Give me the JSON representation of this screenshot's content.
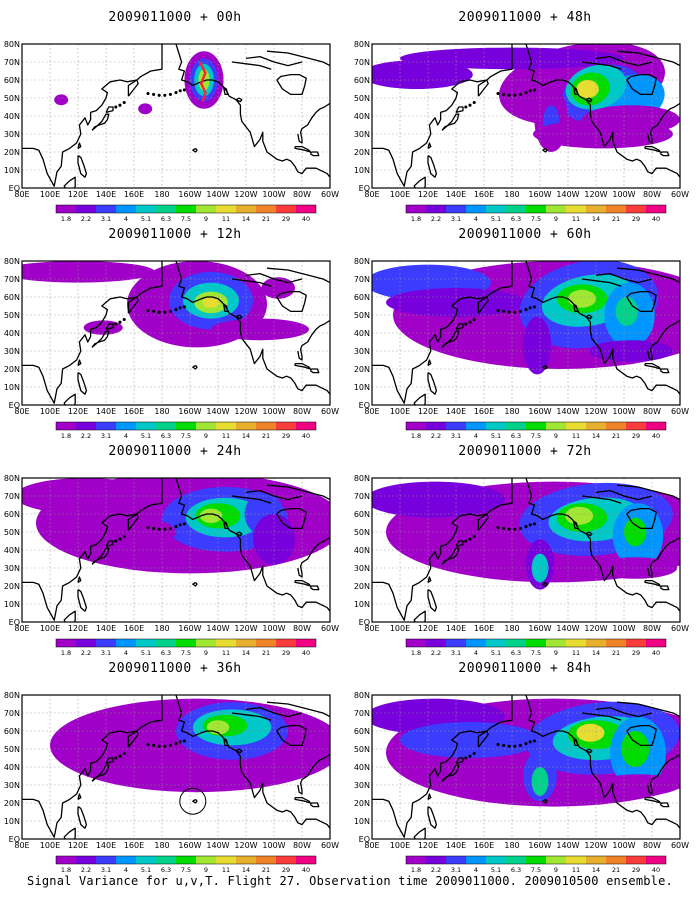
{
  "lat_labels": [
    "80N",
    "70N",
    "60N",
    "50N",
    "40N",
    "30N",
    "20N",
    "10N",
    "EQ"
  ],
  "lon_labels": [
    "80E",
    "100E",
    "120E",
    "140E",
    "160E",
    "180",
    "160W",
    "140W",
    "120W",
    "100W",
    "80W",
    "60W"
  ],
  "colorbar": {
    "labels": [
      "1.8",
      "2.2",
      "3.1",
      "4",
      "5.1",
      "6.3",
      "7.5",
      "9",
      "11",
      "14",
      "21",
      "29",
      "40"
    ],
    "colors": [
      "#a000c8",
      "#7800dc",
      "#3c3cff",
      "#0096ff",
      "#00c8c8",
      "#00d28c",
      "#00dc00",
      "#a0e632",
      "#e6dc32",
      "#e6af2d",
      "#f08228",
      "#fa3c3c",
      "#f00082"
    ]
  },
  "panels": [
    {
      "title": "2009011000 + 00h",
      "lead_hours": 0
    },
    {
      "title": "2009011000 + 48h",
      "lead_hours": 48
    },
    {
      "title": "2009011000 + 12h",
      "lead_hours": 12
    },
    {
      "title": "2009011000 + 60h",
      "lead_hours": 60
    },
    {
      "title": "2009011000 + 24h",
      "lead_hours": 24
    },
    {
      "title": "2009011000 + 72h",
      "lead_hours": 72
    },
    {
      "title": "2009011000 + 36h",
      "lead_hours": 36
    },
    {
      "title": "2009011000 + 84h",
      "lead_hours": 84
    }
  ],
  "footer": "Signal Variance for u,v,T. Flight 27. Observation time 2009011000. 2009010500 ensemble."
}
